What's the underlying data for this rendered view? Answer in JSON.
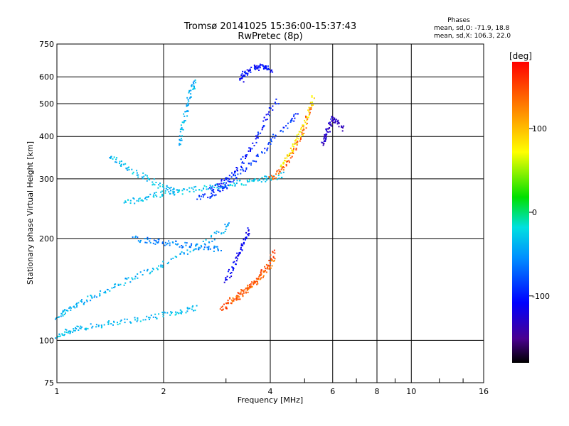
{
  "chart_data": {
    "type": "scatter",
    "title": "Tromsø 20141025 15:36:00-15:37:43",
    "subtitle": "RwPretec (8p)",
    "xlabel": "Frequency [MHz]",
    "ylabel": "Stationary phase Virtual Height [km]",
    "x_scale": "log",
    "y_scale": "log",
    "xlim": [
      1,
      16
    ],
    "ylim": [
      75,
      750
    ],
    "x_ticks": [
      1,
      2,
      4,
      6,
      8,
      10,
      16
    ],
    "y_ticks": [
      75,
      100,
      200,
      300,
      400,
      500,
      600,
      750
    ],
    "x_tick_labels": [
      "1",
      "2",
      "4",
      "6",
      "8",
      "10",
      "16"
    ],
    "y_tick_labels": [
      "75",
      "100",
      "200",
      "300",
      "400",
      "500",
      "600",
      "750"
    ],
    "grid": true,
    "stats": {
      "heading": "Phases",
      "o_line": "mean, sd,O: -71.9, 18.8",
      "x_line": "mean, sd,X: 106.3, 22.0"
    },
    "colorbar": {
      "label": "[deg]",
      "range": [
        -180,
        180
      ],
      "ticks": [
        100,
        0,
        -100
      ],
      "tick_labels": [
        "100",
        "0",
        "-100"
      ],
      "colormap": "rainbow"
    },
    "series": [
      {
        "traces": [
          {
            "f": [
              1.0,
              1.05,
              1.12,
              1.2,
              1.3,
              1.45,
              1.6,
              1.8,
              2.0,
              2.3,
              2.6,
              2.9,
              3.1
            ],
            "h": [
              118,
              122,
              127,
              132,
              138,
              145,
              152,
              160,
              170,
              182,
              196,
              210,
              225
            ],
            "phase": -40
          },
          {
            "f": [
              1.0,
              1.05,
              1.12,
              1.2,
              1.35,
              1.5,
              1.7,
              1.9,
              2.1,
              2.3,
              2.5
            ],
            "h": [
              104,
              106,
              108,
              110,
              112,
              114,
              116,
              118,
              121,
              123,
              126
            ],
            "phase": -35
          },
          {
            "f": [
              1.55,
              1.7,
              1.85,
              2.0,
              2.2,
              2.4,
              2.65,
              2.9,
              3.2,
              3.5,
              3.8,
              4.0,
              4.4
            ],
            "h": [
              255,
              262,
              268,
              272,
              276,
              280,
              284,
              288,
              292,
              296,
              300,
              304,
              310
            ],
            "phase": -30
          },
          {
            "f": [
              1.4,
              1.5,
              1.6,
              1.75,
              1.9,
              2.05,
              2.2
            ],
            "h": [
              350,
              335,
              320,
              305,
              292,
              282,
              275
            ],
            "phase": -35
          },
          {
            "f": [
              2.5,
              2.7,
              2.9,
              3.0,
              3.2,
              3.5,
              3.8,
              4.1,
              4.5,
              4.8
            ],
            "h": [
              265,
              270,
              278,
              290,
              308,
              335,
              365,
              400,
              440,
              480
            ],
            "phase": -90
          },
          {
            "f": [
              2.7,
              2.9,
              3.1,
              3.3,
              3.5,
              3.7,
              3.9,
              4.2
            ],
            "h": [
              280,
              292,
              310,
              335,
              370,
              410,
              460,
              520
            ],
            "phase": -100
          },
          {
            "f": [
              3.3,
              3.35,
              3.45,
              3.6,
              3.75,
              3.9,
              4.0
            ],
            "h": [
              590,
              610,
              630,
              640,
              645,
              640,
              625
            ],
            "phase": -105
          },
          {
            "f": [
              4.0,
              4.2,
              4.4,
              4.6,
              4.8,
              5.0,
              5.2
            ],
            "h": [
              300,
              315,
              335,
              360,
              395,
              440,
              500
            ],
            "phase": 140
          },
          {
            "f": [
              4.3,
              4.5,
              4.7,
              4.9,
              5.1,
              5.3
            ],
            "h": [
              330,
              355,
              385,
              420,
              470,
              540
            ],
            "phase": 80
          },
          {
            "f": [
              2.9,
              3.0,
              3.2,
              3.4,
              3.6,
              3.8,
              4.0,
              4.1
            ],
            "h": [
              125,
              128,
              134,
              142,
              150,
              160,
              172,
              185
            ],
            "phase": 150
          },
          {
            "f": [
              3.1,
              3.3,
              3.5,
              3.7,
              3.9,
              4.1
            ],
            "h": [
              132,
              137,
              144,
              152,
              162,
              175
            ],
            "phase": 135
          },
          {
            "f": [
              3.0,
              3.1,
              3.2,
              3.3,
              3.4,
              3.5
            ],
            "h": [
              150,
              162,
              175,
              188,
              200,
              215
            ],
            "phase": -110
          },
          {
            "f": [
              1.65,
              1.8,
              1.95,
              2.1,
              2.3,
              2.5,
              2.7,
              2.9
            ],
            "h": [
              200,
              198,
              196,
              194,
              192,
              190,
              188,
              186
            ],
            "phase": -60
          },
          {
            "f": [
              2.2,
              2.25,
              2.3,
              2.35,
              2.4,
              2.45
            ],
            "h": [
              380,
              420,
              470,
              520,
              560,
              590
            ],
            "phase": -40
          },
          {
            "f": [
              5.6,
              5.7,
              5.8,
              5.9,
              6.0,
              6.2,
              6.5
            ],
            "h": [
              380,
              400,
              420,
              440,
              460,
              440,
              420
            ],
            "phase": -130
          }
        ]
      }
    ]
  }
}
